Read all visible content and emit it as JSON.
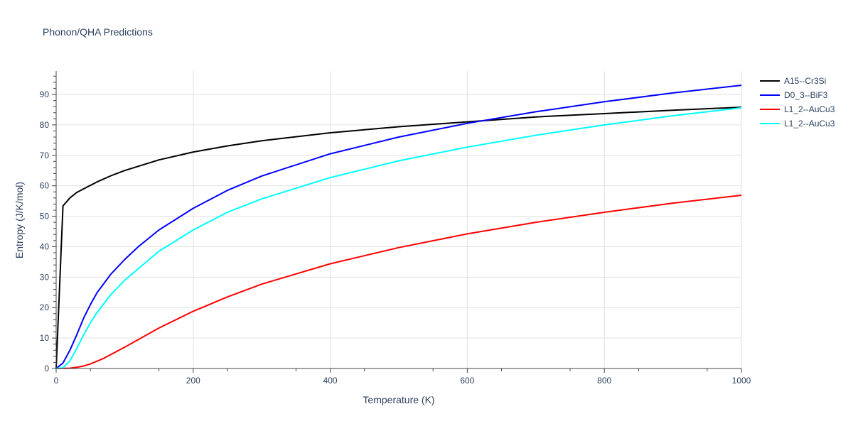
{
  "chart_data": {
    "type": "line",
    "title": "Phonon/QHA Predictions",
    "xlabel": "Temperature (K)",
    "ylabel": "Entropy (J/K/mol)",
    "xlim": [
      0,
      1000
    ],
    "ylim": [
      0,
      98
    ],
    "xticks": [
      0,
      200,
      400,
      600,
      800,
      1000
    ],
    "yticks": [
      0,
      10,
      20,
      30,
      40,
      50,
      60,
      70,
      80,
      90
    ],
    "grid": true,
    "legend_position": "top-right",
    "series": [
      {
        "name": "A15--Cr3Si",
        "color": "#000000",
        "x": [
          0,
          10,
          20,
          30,
          40,
          60,
          80,
          100,
          150,
          200,
          250,
          300,
          400,
          500,
          600,
          700,
          800,
          900,
          1000
        ],
        "y": [
          0,
          53.4,
          56,
          57.8,
          59,
          61.3,
          63.3,
          65,
          68.5,
          71.1,
          73.1,
          74.8,
          77.4,
          79.4,
          81,
          82.6,
          83.7,
          84.8,
          85.8
        ]
      },
      {
        "name": "D0_3--BiF3",
        "color": "#0000ff",
        "x": [
          0,
          10,
          20,
          30,
          40,
          50,
          60,
          80,
          100,
          120,
          150,
          200,
          250,
          300,
          400,
          500,
          600,
          700,
          800,
          900,
          1000
        ],
        "y": [
          0,
          1.8,
          6,
          11,
          16.5,
          21,
          25,
          31,
          35.8,
          40,
          45.5,
          52.6,
          58.5,
          63.2,
          70.5,
          76,
          80.5,
          84.3,
          87.6,
          90.5,
          93
        ]
      },
      {
        "name": "L1_2--AuCu3",
        "color": "#ff0000",
        "x": [
          0,
          20,
          30,
          40,
          50,
          70,
          100,
          150,
          200,
          250,
          300,
          400,
          500,
          600,
          700,
          800,
          900,
          1000
        ],
        "y": [
          0,
          0.1,
          0.4,
          0.8,
          1.5,
          3.4,
          7,
          13.3,
          18.8,
          23.5,
          27.7,
          34.4,
          39.7,
          44.2,
          48,
          51.3,
          54.3,
          56.9
        ]
      },
      {
        "name": "L1_2--AuCu3",
        "color": "#00ffff",
        "x": [
          0,
          10,
          20,
          30,
          40,
          50,
          60,
          80,
          100,
          150,
          200,
          250,
          300,
          400,
          500,
          600,
          700,
          800,
          900,
          1000
        ],
        "y": [
          0,
          0.2,
          2.5,
          6.5,
          11,
          15,
          18.5,
          24.3,
          29,
          38.5,
          45.5,
          51.3,
          55.7,
          62.7,
          68.2,
          72.7,
          76.6,
          80,
          83,
          85.6
        ]
      }
    ]
  }
}
